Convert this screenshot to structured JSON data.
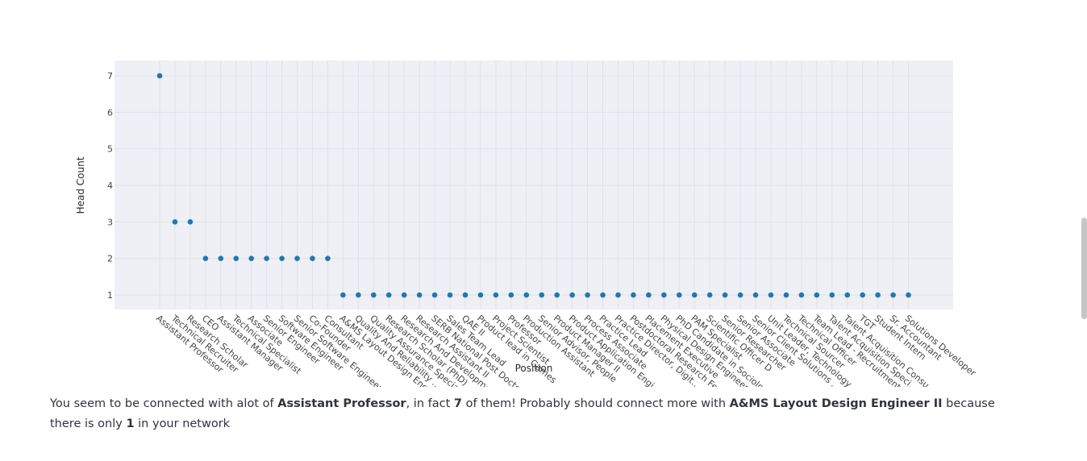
{
  "chart_data": {
    "type": "scatter",
    "title": "",
    "xlabel": "Position",
    "ylabel": "Head Count",
    "ylim": [
      0.6,
      7.4
    ],
    "y_ticks": [
      1,
      2,
      3,
      4,
      5,
      6,
      7
    ],
    "grid": true,
    "marker_color": "#1f77b4",
    "plot_bg": "#eef0f5",
    "grid_color": "#dfe2e8",
    "label_max_chars": 25,
    "categories": [
      "Assistant Professor",
      "Technical Recruiter",
      "Research Scholar",
      "CEO",
      "Assistant Manager",
      "Technical Specialist",
      "Associate",
      "Senior Engineer",
      "Software Engineer",
      "Senior Software Engineer",
      "Co-Founder",
      "Consultant",
      "A&MS Layout Design Engineer II",
      "Quality And Reliability Engineer",
      "Quality Assurance Specialist",
      "Research Scholar (PhD)",
      "Research And Development Engineer",
      "Research Assistant II",
      "SERB National Post Doctoral Fellow",
      "Sales Team Lead",
      "QAE II",
      "Product lead in Games",
      "Project Scientist",
      "Professor",
      "Production Assistant",
      "Senior Advisor, People",
      "Product Manager II",
      "Product Application Engineer",
      "Process Associate",
      "Practice Lead",
      "Practice Director, Digital",
      "Postdoctoral Research Fellow",
      "Placement Executive",
      "Physical Design Engineer",
      "PhD Candidate in Sociology",
      "PAM Specialist",
      "Scientific Officer D",
      "Senior Researcher",
      "Senior Associate",
      "Senior Client Solutions Manager",
      "Unit Leader, Technology",
      "Technical Sourcer",
      "Technical Officer",
      "Team Lead - Recruitment",
      "Talent Acquisition Specialist",
      "Talent Acquisition Consultant",
      "TGT",
      "Student Intern",
      "Sr. Accountant",
      "Solutions Developer"
    ],
    "values": [
      7,
      3,
      3,
      2,
      2,
      2,
      2,
      2,
      2,
      2,
      2,
      2,
      1,
      1,
      1,
      1,
      1,
      1,
      1,
      1,
      1,
      1,
      1,
      1,
      1,
      1,
      1,
      1,
      1,
      1,
      1,
      1,
      1,
      1,
      1,
      1,
      1,
      1,
      1,
      1,
      1,
      1,
      1,
      1,
      1,
      1,
      1,
      1,
      1,
      1
    ]
  },
  "summary": {
    "part1": "You seem to be connected with alot of ",
    "most_position": "Assistant Professor",
    "part2": ", in fact ",
    "most_count": "7",
    "part3": " of them! Probably should connect more with ",
    "least_position": "A&MS Layout Design Engineer II",
    "part4": " because there is only ",
    "least_count": "1",
    "part5": " in your network"
  }
}
